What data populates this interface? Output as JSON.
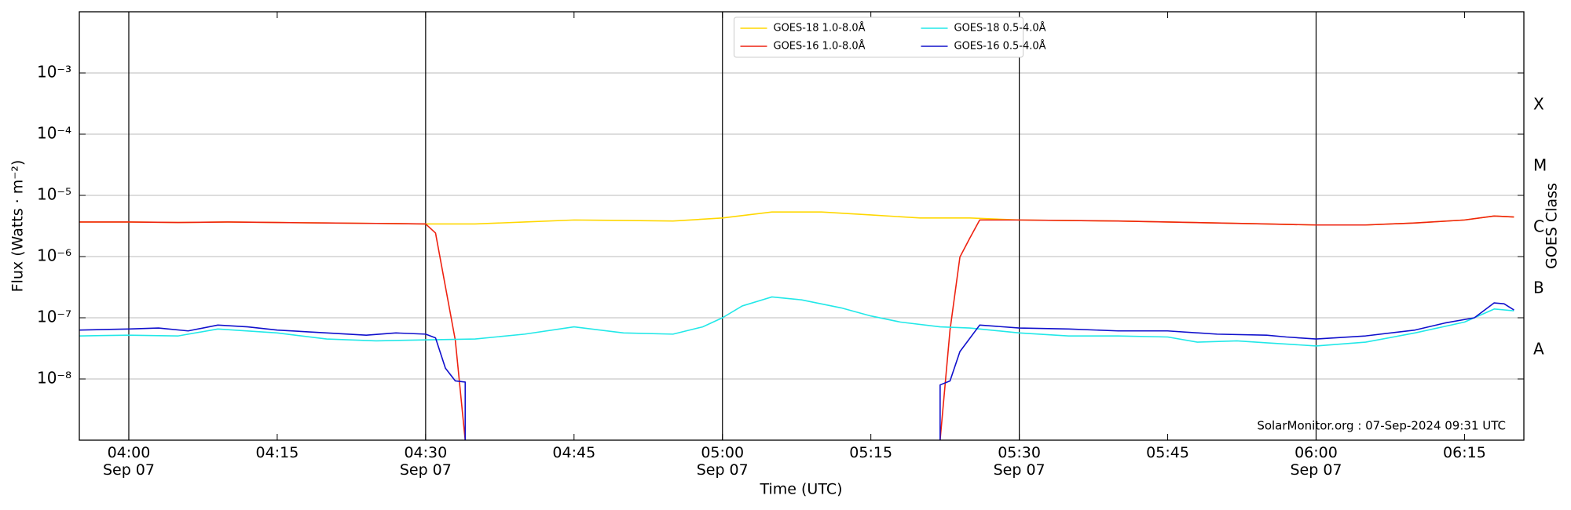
{
  "chart_data": {
    "type": "line",
    "ylabel": "Flux (Watts · m⁻²)",
    "xlabel": "Time (UTC)",
    "y2label": "GOES Class",
    "annotation": "SolarMonitor.org : 07-Sep-2024 09:31 UTC",
    "yscale": "log",
    "grid": true,
    "legend": "upper center",
    "xlim": [
      "03:55",
      "06:21"
    ],
    "ylim": [
      1e-09,
      0.01
    ],
    "yticks": [
      {
        "value": 1e-08,
        "label": "10⁻⁸"
      },
      {
        "value": 1e-07,
        "label": "10⁻⁷"
      },
      {
        "value": 1e-06,
        "label": "10⁻⁶"
      },
      {
        "value": 1e-05,
        "label": "10⁻⁵"
      },
      {
        "value": 0.0001,
        "label": "10⁻⁴"
      },
      {
        "value": 0.001,
        "label": "10⁻³"
      }
    ],
    "y2ticks": [
      {
        "value": 3e-08,
        "label": "A"
      },
      {
        "value": 3e-07,
        "label": "B"
      },
      {
        "value": 3e-06,
        "label": "C"
      },
      {
        "value": 3e-05,
        "label": "M"
      },
      {
        "value": 0.0003,
        "label": "X"
      }
    ],
    "xticks": [
      {
        "value": "04:00",
        "label": "04:00\nSep 07"
      },
      "04:15",
      {
        "value": "04:30",
        "label": "04:30\nSep 07"
      },
      "04:45",
      {
        "value": "05:00",
        "label": "05:00\nSep 07"
      },
      "05:15",
      {
        "value": "05:30",
        "label": "05:30\nSep 07"
      },
      "05:45",
      {
        "value": "06:00",
        "label": "06:00\nSep 07"
      },
      "06:15"
    ],
    "vlines": [
      "04:00",
      "04:30",
      "05:00",
      "05:30",
      "06:00"
    ],
    "series": [
      {
        "name": "GOES-18 1.0-8.0Å",
        "color": "#ffd700",
        "x": [
          "03:55",
          "04:00",
          "04:05",
          "04:10",
          "04:15",
          "04:20",
          "04:25",
          "04:30",
          "04:35",
          "04:40",
          "04:45",
          "04:50",
          "04:55",
          "05:00",
          "05:05",
          "05:10",
          "05:15",
          "05:20",
          "05:25",
          "05:30",
          "05:40",
          "05:45",
          "05:50",
          "05:55",
          "06:00",
          "06:05",
          "06:10",
          "06:15",
          "06:18",
          "06:20"
        ],
        "values": [
          3.67e-06,
          3.67e-06,
          3.6e-06,
          3.67e-06,
          3.6e-06,
          3.54e-06,
          3.48e-06,
          3.41e-06,
          3.41e-06,
          3.67e-06,
          3.96e-06,
          3.9e-06,
          3.81e-06,
          4.27e-06,
          5.35e-06,
          5.35e-06,
          4.79e-06,
          4.27e-06,
          4.27e-06,
          3.96e-06,
          3.81e-06,
          3.67e-06,
          3.54e-06,
          3.41e-06,
          3.28e-06,
          3.28e-06,
          3.54e-06,
          3.96e-06,
          4.6e-06,
          4.43e-06
        ]
      },
      {
        "name": "GOES-16 1.0-8.0Å",
        "color": "#ee2211",
        "x": [
          "03:55",
          "04:00",
          "04:05",
          "04:10",
          "04:15",
          "04:20",
          "04:25",
          "04:30",
          "04:31",
          "04:33",
          "04:34",
          "05:00",
          "05:22",
          "05:23",
          "05:24",
          "05:25",
          "05:26",
          "05:30",
          "05:40",
          "05:45",
          "05:50",
          "05:55",
          "06:00",
          "06:05",
          "06:10",
          "06:15",
          "06:18",
          "06:20"
        ],
        "values": [
          3.67e-06,
          3.67e-06,
          3.6e-06,
          3.67e-06,
          3.6e-06,
          3.54e-06,
          3.48e-06,
          3.41e-06,
          2.43e-06,
          4.3e-08,
          1e-09,
          null,
          1e-09,
          6.3e-08,
          9.8e-07,
          2e-06,
          3.96e-06,
          3.96e-06,
          3.81e-06,
          3.67e-06,
          3.54e-06,
          3.41e-06,
          3.28e-06,
          3.28e-06,
          3.54e-06,
          3.96e-06,
          4.6e-06,
          4.43e-06
        ]
      },
      {
        "name": "GOES-18 0.5-4.0Å",
        "color": "#22e8e8",
        "x": [
          "03:55",
          "04:00",
          "04:05",
          "04:09",
          "04:15",
          "04:20",
          "04:25",
          "04:30",
          "04:35",
          "04:40",
          "04:45",
          "04:50",
          "04:55",
          "04:58",
          "05:00",
          "05:02",
          "05:05",
          "05:08",
          "05:12",
          "05:15",
          "05:18",
          "05:22",
          "05:25",
          "05:30",
          "05:35",
          "05:40",
          "05:45",
          "05:48",
          "05:52",
          "05:55",
          "06:00",
          "06:05",
          "06:10",
          "06:15",
          "06:18",
          "06:20"
        ],
        "values": [
          5.05e-08,
          5.2e-08,
          5.05e-08,
          6.56e-08,
          5.65e-08,
          4.5e-08,
          4.2e-08,
          4.35e-08,
          4.5e-08,
          5.4e-08,
          7.1e-08,
          5.65e-08,
          5.4e-08,
          7.1e-08,
          1e-07,
          1.56e-07,
          2.19e-07,
          1.96e-07,
          1.45e-07,
          1.07e-07,
          8.5e-08,
          7.1e-08,
          6.8e-08,
          5.65e-08,
          5.05e-08,
          5.05e-08,
          4.85e-08,
          4e-08,
          4.2e-08,
          3.9e-08,
          3.46e-08,
          4e-08,
          5.65e-08,
          8.5e-08,
          1.39e-07,
          1.3e-07
        ]
      },
      {
        "name": "GOES-16 0.5-4.0Å",
        "color": "#1010cc",
        "x": [
          "03:55",
          "04:00",
          "04:03",
          "04:06",
          "04:09",
          "04:12",
          "04:15",
          "04:20",
          "04:24",
          "04:27",
          "04:30",
          "04:31",
          "04:32",
          "04:33",
          "04:34",
          "04:34",
          "05:00",
          "05:22",
          "05:22",
          "05:23",
          "05:24",
          "05:26",
          "05:30",
          "05:35",
          "05:40",
          "05:45",
          "05:50",
          "05:55",
          "05:57",
          "06:00",
          "06:05",
          "06:10",
          "06:13",
          "06:16",
          "06:18",
          "06:19",
          "06:20"
        ],
        "values": [
          6.3e-08,
          6.56e-08,
          6.8e-08,
          6.1e-08,
          7.6e-08,
          7.1e-08,
          6.3e-08,
          5.65e-08,
          5.2e-08,
          5.65e-08,
          5.4e-08,
          4.7e-08,
          1.5e-08,
          9.3e-09,
          8.9e-09,
          1e-09,
          null,
          1e-09,
          8e-09,
          9.3e-09,
          2.8e-08,
          7.6e-08,
          6.8e-08,
          6.56e-08,
          6.1e-08,
          6.1e-08,
          5.4e-08,
          5.2e-08,
          4.85e-08,
          4.5e-08,
          5.05e-08,
          6.3e-08,
          8.2e-08,
          1e-07,
          1.75e-07,
          1.69e-07,
          1.34e-07
        ]
      }
    ]
  }
}
